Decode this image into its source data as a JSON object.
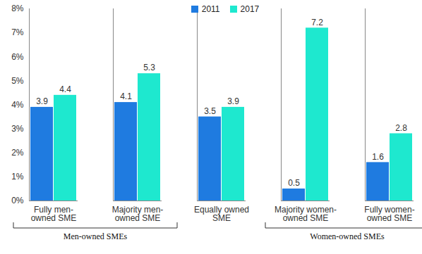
{
  "chart_data": {
    "type": "bar",
    "categories": [
      "Fully men-owned SME",
      "Majority men-owned SME",
      "Equally owned SME",
      "Majority women-owned SME",
      "Fully women-owned SME"
    ],
    "series": [
      {
        "name": "2011",
        "color": "#1f7be0",
        "values": [
          3.9,
          4.1,
          3.5,
          0.5,
          1.6
        ]
      },
      {
        "name": "2017",
        "color": "#1ee8cf",
        "values": [
          4.4,
          5.3,
          3.9,
          7.2,
          2.8
        ]
      }
    ],
    "ylim": [
      0,
      8
    ],
    "yticks": [
      {
        "value": 0,
        "label": "0%"
      },
      {
        "value": 1,
        "label": "1%"
      },
      {
        "value": 2,
        "label": "2%"
      },
      {
        "value": 3,
        "label": "3%"
      },
      {
        "value": 4,
        "label": "4%"
      },
      {
        "value": 5,
        "label": "5%"
      },
      {
        "value": 6,
        "label": "6%"
      },
      {
        "value": 7,
        "label": "7%"
      },
      {
        "value": 8,
        "label": "8%"
      }
    ],
    "grid": false,
    "legend": "top",
    "data_labels": true,
    "groups": [
      {
        "name": "Men-owned SMEs",
        "categories": [
          "Fully men-owned SME",
          "Majority men-owned SME"
        ]
      },
      {
        "name": "Women-owned SMEs",
        "categories": [
          "Majority women-owned SME",
          "Fully women-owned SME"
        ]
      }
    ]
  }
}
